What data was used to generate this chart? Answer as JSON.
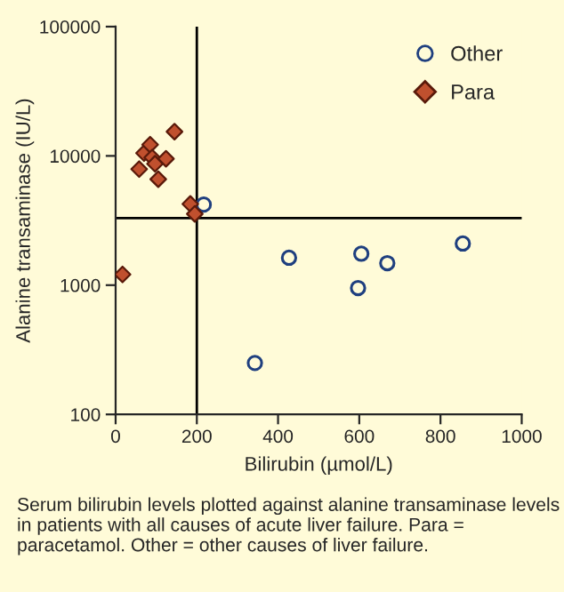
{
  "chart_data": {
    "type": "scatter",
    "xlabel": "Bilirubin (µmol/L)",
    "ylabel": "Alanine transaminase (IU/L)",
    "series": [
      {
        "name": "Other",
        "color": "#1f3f7f",
        "marker": "circle",
        "x": [
          217,
          427,
          605,
          597,
          669,
          855,
          343
        ],
        "values": [
          4200,
          1630,
          1750,
          950,
          1480,
          2100,
          250
        ]
      },
      {
        "name": "Para",
        "color": "#c0502e",
        "marker": "diamond",
        "x": [
          58,
          70,
          85,
          90,
          97,
          105,
          124,
          145,
          184,
          195,
          17
        ],
        "values": [
          7900,
          10500,
          12200,
          9700,
          8700,
          6600,
          9500,
          15400,
          4250,
          3560,
          1210
        ]
      }
    ],
    "log": "y",
    "xlim": [
      0,
      1000
    ],
    "xticks": [
      0,
      200,
      400,
      600,
      800,
      1000
    ],
    "ylim": [
      100,
      100000
    ],
    "yticks": [
      100,
      1000,
      10000,
      100000
    ],
    "ref_lines": [
      {
        "axis": "x",
        "value": 200,
        "color": "#000000"
      },
      {
        "axis": "y",
        "value": 3300,
        "color": "#000000"
      }
    ],
    "legend": "top right",
    "grid": false,
    "annotations": [
      "Serum bilirubin levels plotted against alanine transaminase levels in patients with all causes of acute liver failure. Para = paracetamol. Other = other causes of liver failure."
    ]
  }
}
